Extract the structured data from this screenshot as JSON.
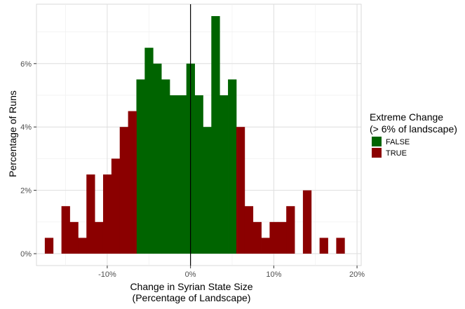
{
  "chart_data": {
    "type": "bar",
    "subtype": "histogram",
    "bin_width": 1,
    "x_tick_labels": [
      "-10%",
      "0%",
      "10%",
      "20%"
    ],
    "x_tick_values": [
      -10,
      0,
      10,
      20
    ],
    "y_tick_labels": [
      "0%",
      "2%",
      "4%",
      "6%"
    ],
    "y_tick_values": [
      0,
      2,
      4,
      6
    ],
    "xlim": [
      -18.5,
      20.5
    ],
    "ylim": [
      -0.375,
      7.875
    ],
    "xlabel_line1": "Change in Syrian State Size",
    "xlabel_line2": "(Percentage of Landscape)",
    "ylabel": "Percentage of Runs",
    "vline_x": 0,
    "grid": true,
    "legend": {
      "position": "right",
      "title_line1": "Extreme Change",
      "title_line2": "(> 6% of landscape)"
    },
    "series": [
      {
        "name": "FALSE",
        "color": "#006400",
        "x": [
          -6,
          -5,
          -4,
          -3,
          -2,
          -1,
          0,
          1,
          2,
          3,
          4,
          5
        ],
        "values": [
          5.5,
          6.5,
          6.0,
          5.5,
          5.0,
          5.0,
          6.0,
          5.0,
          4.0,
          7.5,
          5.0,
          5.5
        ]
      },
      {
        "name": "TRUE",
        "color": "#8b0000",
        "x": [
          -17,
          -15,
          -14,
          -13,
          -12,
          -11,
          -10,
          -9,
          -8,
          -7,
          6,
          7,
          8,
          9,
          10,
          11,
          12,
          14,
          16,
          18
        ],
        "values": [
          0.5,
          1.5,
          1.0,
          0.5,
          2.5,
          1.0,
          2.5,
          3.0,
          4.0,
          4.5,
          4.0,
          1.5,
          1.0,
          0.5,
          1.0,
          1.0,
          1.5,
          2.0,
          0.5,
          0.5
        ]
      }
    ]
  }
}
